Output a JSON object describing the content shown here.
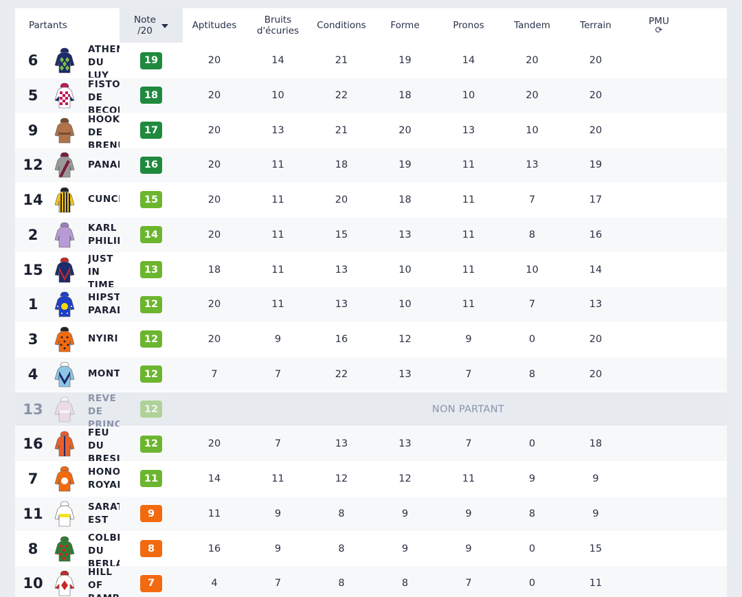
{
  "header": {
    "partants": "Partants",
    "note_line1": "Note",
    "note_line2": "/20",
    "aptitudes": "Aptitudes",
    "bruits_line1": "Bruits",
    "bruits_line2": "d'écuries",
    "conditions": "Conditions",
    "forme": "Forme",
    "pronos": "Pronos",
    "tandem": "Tandem",
    "terrain": "Terrain",
    "pmu": "PMU",
    "refresh_glyph": "⟳"
  },
  "non_partant_label": "NON PARTANT",
  "arrow_glyph": "›",
  "colors": {
    "note_high": "#1f8a3e",
    "note_mid": "#6cb52e",
    "note_low": "#f26a10",
    "shade": "#e7ebf0"
  },
  "rows": [
    {
      "num": "6",
      "name": "ATHENA DU LUY",
      "note": "19",
      "tier": "high",
      "silk": "green-diamonds-navy",
      "values": [
        "20",
        "14",
        "21",
        "19",
        "14",
        "20",
        "20"
      ]
    },
    {
      "num": "5",
      "name": "FISTON DE BECON",
      "note": "18",
      "tier": "high",
      "silk": "pink-check-navy",
      "values": [
        "20",
        "10",
        "22",
        "18",
        "10",
        "20",
        "20"
      ]
    },
    {
      "num": "9",
      "name": "HOOKER DE BRENUS",
      "note": "17",
      "tier": "high",
      "silk": "brown-plain",
      "values": [
        "20",
        "13",
        "21",
        "20",
        "13",
        "10",
        "20"
      ]
    },
    {
      "num": "12",
      "name": "PANAREA",
      "note": "16",
      "tier": "high",
      "silk": "grey-maroon-sash",
      "values": [
        "20",
        "11",
        "18",
        "19",
        "11",
        "13",
        "19"
      ]
    },
    {
      "num": "14",
      "name": "CUNCERTO",
      "note": "15",
      "tier": "mid",
      "silk": "yellow-black-stripes",
      "values": [
        "20",
        "11",
        "20",
        "18",
        "11",
        "7",
        "17"
      ]
    },
    {
      "num": "2",
      "name": "KARL PHILIPPE",
      "note": "14",
      "tier": "mid",
      "silk": "lilac-plain",
      "values": [
        "20",
        "11",
        "15",
        "13",
        "11",
        "8",
        "16"
      ]
    },
    {
      "num": "15",
      "name": "JUST IN TIME BLUE",
      "note": "13",
      "tier": "mid",
      "silk": "navy-red-chevron",
      "values": [
        "18",
        "11",
        "13",
        "10",
        "11",
        "10",
        "14"
      ]
    },
    {
      "num": "1",
      "name": "HIPSTER PARADISE",
      "note": "12",
      "tier": "mid",
      "silk": "blue-yellow-disc",
      "values": [
        "20",
        "11",
        "13",
        "10",
        "11",
        "7",
        "13"
      ]
    },
    {
      "num": "3",
      "name": "NYIRI",
      "note": "12",
      "tier": "mid",
      "silk": "orange-black-spots",
      "values": [
        "20",
        "9",
        "16",
        "12",
        "9",
        "0",
        "20"
      ]
    },
    {
      "num": "4",
      "name": "MONTABE",
      "note": "12",
      "tier": "mid",
      "silk": "lightblue-navy-chevron",
      "values": [
        "7",
        "7",
        "22",
        "13",
        "7",
        "8",
        "20"
      ]
    },
    {
      "num": "13",
      "name": "REVE DE PRINCE",
      "note": "12",
      "tier": "mid",
      "silk": "pink-white",
      "non_partant": true,
      "values": []
    },
    {
      "num": "16",
      "name": "FEU DU BRESIL",
      "note": "12",
      "tier": "mid",
      "silk": "orange-navy-stripe",
      "values": [
        "20",
        "7",
        "13",
        "13",
        "7",
        "0",
        "18"
      ]
    },
    {
      "num": "7",
      "name": "HONOR ROYAL",
      "note": "11",
      "tier": "mid",
      "silk": "orange-white-disc",
      "values": [
        "14",
        "11",
        "12",
        "12",
        "11",
        "9",
        "9"
      ]
    },
    {
      "num": "11",
      "name": "SARATOGA EST",
      "note": "9",
      "tier": "low",
      "silk": "white-yellow-band",
      "values": [
        "11",
        "9",
        "8",
        "9",
        "9",
        "8",
        "9"
      ]
    },
    {
      "num": "8",
      "name": "COLBERT DU BERLAIS",
      "note": "8",
      "tier": "low",
      "silk": "green-red-check",
      "values": [
        "16",
        "9",
        "8",
        "9",
        "9",
        "0",
        "15"
      ]
    },
    {
      "num": "10",
      "name": "HILL OF BAMBOO",
      "note": "7",
      "tier": "low",
      "silk": "white-red-diamond",
      "values": [
        "4",
        "7",
        "8",
        "8",
        "7",
        "0",
        "11"
      ]
    }
  ]
}
